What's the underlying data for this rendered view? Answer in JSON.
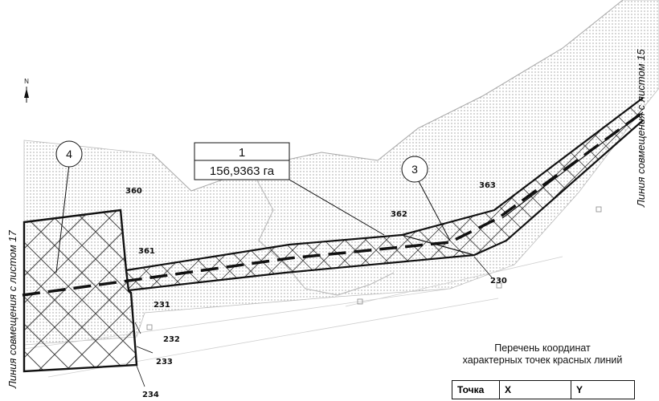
{
  "compass": {
    "north_label": "N"
  },
  "area_box": {
    "number": "1",
    "area": "156,9363 га"
  },
  "zone_markers": [
    {
      "label": "4"
    },
    {
      "label": "3"
    }
  ],
  "points": [
    "360",
    "361",
    "231",
    "232",
    "233",
    "234",
    "362",
    "363",
    "230"
  ],
  "sheet_links": {
    "left": "Линия совмещения с листом 17",
    "right": "Линия совмещения с листом 15"
  },
  "coord_table": {
    "title_line1": "Перечень координат",
    "title_line2": "характерных точек красных линий",
    "headers": [
      "Точка",
      "X",
      "Y"
    ]
  },
  "colors": {
    "line": "#111111",
    "dots": "#aaaaaa",
    "hatch": "#444444"
  }
}
